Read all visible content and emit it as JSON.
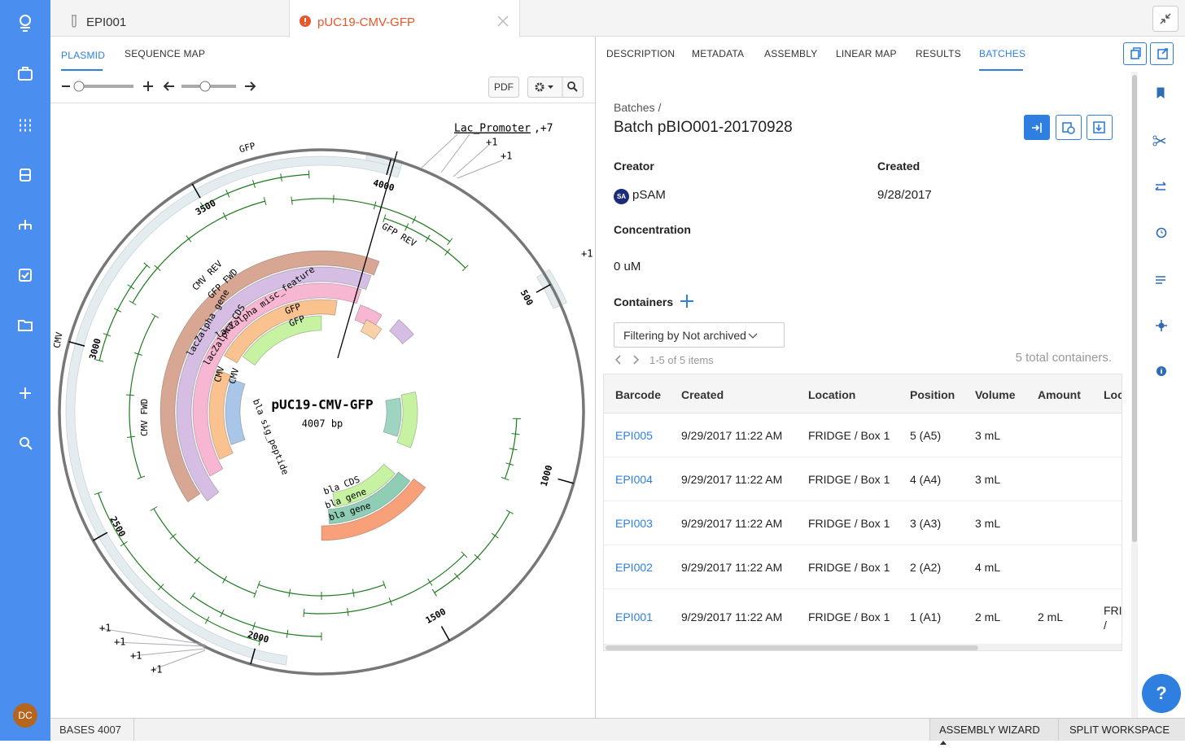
{
  "sidebar": {
    "user_initials": "DC"
  },
  "tabs": [
    "EPI001",
    "pUC19-CMV-GFP"
  ],
  "left_tabs": [
    "PLASMID",
    "SEQUENCE MAP"
  ],
  "toolbar": {
    "pdf": "PDF"
  },
  "plasmid": {
    "name": "pUC19-CMV-GFP",
    "length": "4007 bp",
    "positions": [
      "500",
      "1000",
      "1500",
      "2000",
      "2500",
      "3000",
      "3500",
      "4000"
    ],
    "annotation": "Lac_Promoter",
    "annotation_count": ",+7",
    "plus_labels": [
      "+1",
      "+1",
      "+1",
      "+1",
      "+1",
      "+1",
      "+1"
    ],
    "features": [
      "GFP",
      "GFP REV",
      "CMV REV",
      "GFP FWD",
      "lacZalpha gene",
      "lacZalpha CDS",
      "lacZalpha misc_feature",
      "GFP",
      "GFP",
      "CMV",
      "CMV",
      "CMV",
      "CMV FWD",
      "bla sig_peptide",
      "bla CDS",
      "bla gene",
      "bla gene"
    ]
  },
  "right_tabs": [
    "DESCRIPTION",
    "METADATA",
    "ASSEMBLY",
    "LINEAR MAP",
    "RESULTS",
    "BATCHES"
  ],
  "batch": {
    "breadcrumb": "Batches /",
    "title": "Batch pBIO001-20170928",
    "creator_label": "Creator",
    "creator_badge": "SA",
    "creator": "pSAM",
    "created_label": "Created",
    "created": "9/28/2017",
    "concentration_label": "Concentration",
    "concentration": "0 uM",
    "containers_label": "Containers",
    "filter": "Filtering by Not archived",
    "pager": "1-5 of 5 items",
    "total": "5 total containers."
  },
  "table": {
    "headers": [
      "Barcode",
      "Created",
      "Location",
      "Position",
      "Volume",
      "Amount",
      "Loc"
    ],
    "rows": [
      [
        "EPI005",
        "9/29/2017 11:22 AM",
        "FRIDGE / Box 1",
        "5 (A5)",
        "3 mL",
        "",
        ""
      ],
      [
        "EPI004",
        "9/29/2017 11:22 AM",
        "FRIDGE / Box 1",
        "4 (A4)",
        "3 mL",
        "",
        ""
      ],
      [
        "EPI003",
        "9/29/2017 11:22 AM",
        "FRIDGE / Box 1",
        "3 (A3)",
        "3 mL",
        "",
        ""
      ],
      [
        "EPI002",
        "9/29/2017 11:22 AM",
        "FRIDGE / Box 1",
        "2 (A2)",
        "4 mL",
        "",
        ""
      ],
      [
        "EPI001",
        "9/29/2017 11:22 AM",
        "FRIDGE / Box 1",
        "1 (A1)",
        "2 mL",
        "2 mL",
        "FRI / Bo"
      ]
    ]
  },
  "status": {
    "bases_label": "BASES",
    "bases": "4007",
    "assembly_wizard": "ASSEMBLY WIZARD",
    "split_workspace": "SPLIT WORKSPACE"
  },
  "help": "?"
}
